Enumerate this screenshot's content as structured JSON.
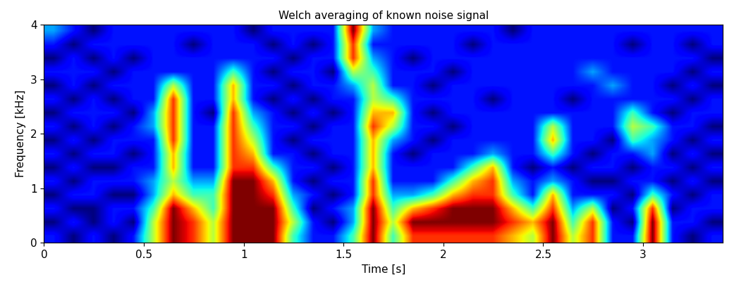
{
  "chart_data": {
    "type": "heatmap",
    "title": "Welch averaging of known noise signal",
    "x_label": "Time [s]",
    "y_label": "Frequency [kHz]",
    "xlim": [
      0,
      3.4
    ],
    "ylim": [
      0,
      4
    ],
    "xticks": [
      0,
      0.5,
      1,
      1.5,
      2,
      2.5,
      3
    ],
    "yticks": [
      0,
      1,
      2,
      3,
      4
    ],
    "cells": [
      [
        3,
        2,
        3,
        2,
        3,
        6,
        9,
        8,
        6,
        9,
        9,
        9,
        5,
        3,
        3,
        5,
        9,
        5,
        8,
        8,
        8,
        8,
        8,
        7,
        6,
        9,
        6,
        8,
        3,
        3,
        9,
        3,
        2,
        3
      ],
      [
        2,
        3,
        2,
        3,
        2,
        6,
        9,
        8,
        6,
        9,
        9,
        9,
        6,
        3,
        2,
        4,
        9,
        6,
        9,
        9,
        9,
        9,
        9,
        8,
        7,
        9,
        5,
        8,
        3,
        2,
        9,
        3,
        3,
        2
      ],
      [
        3,
        2,
        2,
        3,
        3,
        5,
        9,
        7,
        5,
        9,
        9,
        9,
        5,
        2,
        3,
        4,
        9,
        5,
        7,
        8,
        9,
        9,
        9,
        7,
        5,
        8,
        4,
        6,
        2,
        3,
        8,
        2,
        3,
        3
      ],
      [
        2,
        3,
        3,
        2,
        2,
        4,
        7,
        5,
        5,
        9,
        9,
        8,
        4,
        3,
        2,
        3,
        8,
        4,
        4,
        5,
        7,
        8,
        8,
        5,
        3,
        7,
        3,
        3,
        3,
        2,
        5,
        3,
        2,
        3
      ],
      [
        3,
        2,
        3,
        3,
        3,
        4,
        6,
        4,
        4,
        9,
        9,
        7,
        3,
        2,
        3,
        3,
        8,
        3,
        3,
        3,
        5,
        7,
        8,
        4,
        3,
        4,
        3,
        2,
        2,
        3,
        3,
        2,
        3,
        2
      ],
      [
        2,
        3,
        2,
        2,
        3,
        3,
        7,
        3,
        3,
        8,
        8,
        5,
        3,
        3,
        2,
        3,
        7,
        3,
        3,
        3,
        3,
        5,
        7,
        3,
        2,
        3,
        2,
        3,
        3,
        2,
        3,
        3,
        2,
        3
      ],
      [
        3,
        2,
        3,
        3,
        2,
        3,
        7,
        3,
        3,
        8,
        7,
        3,
        3,
        2,
        3,
        3,
        7,
        3,
        2,
        3,
        3,
        3,
        4,
        3,
        3,
        5,
        3,
        2,
        3,
        3,
        4,
        2,
        3,
        2
      ],
      [
        2,
        3,
        2,
        3,
        3,
        3,
        8,
        3,
        3,
        8,
        6,
        3,
        2,
        3,
        3,
        3,
        7,
        4,
        3,
        2,
        3,
        3,
        3,
        3,
        3,
        7,
        3,
        3,
        2,
        5,
        4,
        3,
        2,
        3
      ],
      [
        3,
        2,
        3,
        2,
        3,
        4,
        8,
        3,
        3,
        8,
        5,
        3,
        3,
        2,
        3,
        3,
        8,
        6,
        3,
        3,
        2,
        3,
        3,
        3,
        3,
        6,
        3,
        3,
        3,
        6,
        5,
        3,
        3,
        2
      ],
      [
        2,
        3,
        3,
        3,
        2,
        4,
        8,
        3,
        2,
        8,
        4,
        3,
        2,
        3,
        2,
        3,
        7,
        7,
        3,
        2,
        3,
        3,
        3,
        3,
        3,
        3,
        3,
        3,
        3,
        5,
        3,
        2,
        3,
        3
      ],
      [
        3,
        2,
        3,
        2,
        3,
        3,
        8,
        3,
        3,
        7,
        3,
        2,
        3,
        2,
        3,
        3,
        6,
        5,
        3,
        3,
        3,
        3,
        2,
        3,
        3,
        3,
        2,
        3,
        3,
        3,
        3,
        3,
        2,
        3
      ],
      [
        2,
        3,
        2,
        3,
        3,
        3,
        6,
        3,
        3,
        7,
        3,
        3,
        2,
        3,
        3,
        4,
        6,
        3,
        3,
        2,
        3,
        3,
        3,
        3,
        3,
        3,
        3,
        3,
        4,
        3,
        3,
        2,
        3,
        2
      ],
      [
        3,
        3,
        3,
        2,
        3,
        3,
        3,
        3,
        3,
        5,
        3,
        2,
        3,
        3,
        2,
        6,
        5,
        3,
        3,
        3,
        2,
        3,
        3,
        3,
        3,
        3,
        3,
        4,
        3,
        3,
        3,
        3,
        2,
        3
      ],
      [
        2,
        3,
        2,
        3,
        2,
        3,
        3,
        3,
        3,
        3,
        3,
        3,
        2,
        3,
        3,
        8,
        4,
        3,
        2,
        3,
        3,
        3,
        3,
        3,
        3,
        3,
        3,
        3,
        3,
        3,
        3,
        3,
        3,
        2
      ],
      [
        3,
        2,
        3,
        3,
        3,
        3,
        3,
        2,
        3,
        3,
        3,
        2,
        3,
        2,
        3,
        8,
        3,
        3,
        3,
        3,
        3,
        2,
        3,
        3,
        3,
        3,
        3,
        3,
        3,
        2,
        3,
        3,
        2,
        3
      ],
      [
        4,
        3,
        2,
        3,
        3,
        3,
        3,
        3,
        3,
        3,
        2,
        3,
        3,
        3,
        3,
        9,
        4,
        3,
        3,
        3,
        3,
        3,
        3,
        2,
        3,
        3,
        3,
        3,
        3,
        3,
        3,
        3,
        3,
        3
      ]
    ]
  }
}
